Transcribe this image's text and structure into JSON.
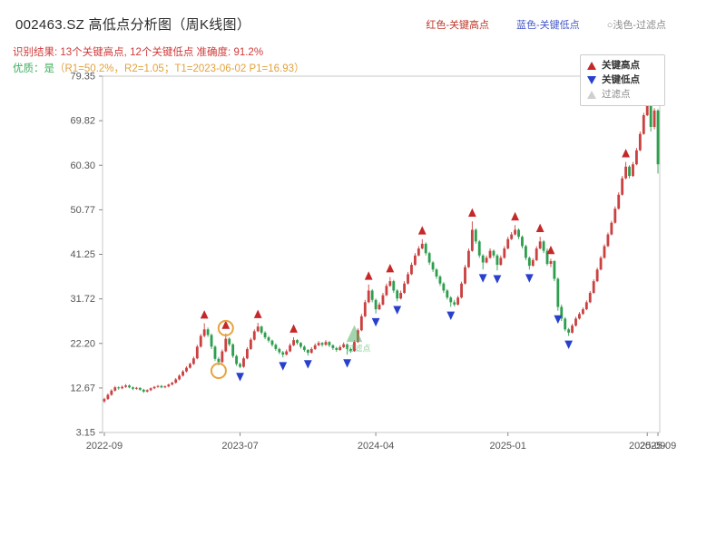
{
  "header": {
    "title": "002463.SZ 高低点分析图（周K线图）",
    "legend_top": [
      {
        "label": "红色-关键高点",
        "color": "#c0392b"
      },
      {
        "label": "蓝色-关键低点",
        "color": "#4558c9"
      },
      {
        "label": "○浅色-过滤点",
        "color": "#8c8c8c"
      }
    ],
    "result_line": "识别结果: 13个关键高点, 12个关键低点  准确度: 91.2%",
    "quality_prefix": "优质：是",
    "quality_detail": "（R1=50.2%，R2=1.05；T1=2023-06-02 P1=16.93）"
  },
  "legend_box": {
    "items": [
      {
        "label": "关键高点",
        "marker": "up-triangle-red"
      },
      {
        "label": "关键低点",
        "marker": "down-triangle-blue"
      },
      {
        "label": "过滤点",
        "marker": "up-triangle-light"
      }
    ]
  },
  "chart_data": {
    "type": "candlestick",
    "title": "002463.SZ 高低点分析图（周K线图）",
    "xlabel": "",
    "ylabel": "",
    "ylim": [
      3.15,
      79.35
    ],
    "y_ticks": [
      79.35,
      69.82,
      60.3,
      50.77,
      41.25,
      31.72,
      22.2,
      12.67,
      3.15
    ],
    "x_ticks": [
      {
        "i": 0,
        "label": "2022-09"
      },
      {
        "i": 38,
        "label": "2023-07"
      },
      {
        "i": 76,
        "label": "2024-04"
      },
      {
        "i": 113,
        "label": "2025-01"
      },
      {
        "i": 152,
        "label": "2025-09"
      },
      {
        "i": 155,
        "label": "2025-09"
      }
    ],
    "colors": {
      "up": "#cb4141",
      "down": "#2e9e4e",
      "key_high": "#c62828",
      "key_low": "#2840cc",
      "filter_circle": "#e8a33d",
      "filter_triangle": "#58b368",
      "axis": "#c8c8c8",
      "tick": "#888888"
    },
    "candles": [
      [
        9.8,
        10.6,
        9.5,
        10.3
      ],
      [
        10.3,
        11.5,
        10.1,
        11.2
      ],
      [
        11.2,
        12.4,
        11.0,
        12.1
      ],
      [
        12.1,
        13.1,
        11.9,
        12.8
      ],
      [
        12.8,
        13.0,
        12.3,
        12.6
      ],
      [
        12.6,
        13.2,
        12.4,
        12.9
      ],
      [
        12.9,
        13.5,
        12.7,
        13.2
      ],
      [
        13.2,
        13.4,
        12.6,
        12.8
      ],
      [
        12.8,
        13.0,
        12.2,
        12.5
      ],
      [
        12.5,
        12.9,
        12.3,
        12.7
      ],
      [
        12.7,
        12.8,
        12.1,
        12.3
      ],
      [
        12.3,
        12.5,
        11.6,
        11.9
      ],
      [
        11.9,
        12.4,
        11.7,
        12.2
      ],
      [
        12.2,
        12.8,
        12.0,
        12.6
      ],
      [
        12.6,
        13.1,
        12.4,
        12.9
      ],
      [
        12.9,
        13.3,
        12.7,
        13.1
      ],
      [
        13.1,
        13.3,
        12.6,
        12.8
      ],
      [
        12.8,
        13.2,
        12.6,
        13.0
      ],
      [
        13.0,
        13.6,
        12.8,
        13.4
      ],
      [
        13.4,
        14.0,
        13.2,
        13.8
      ],
      [
        13.8,
        14.8,
        13.6,
        14.5
      ],
      [
        14.5,
        15.6,
        14.3,
        15.3
      ],
      [
        15.3,
        16.5,
        15.1,
        16.2
      ],
      [
        16.2,
        17.3,
        16.0,
        17.0
      ],
      [
        17.0,
        18.1,
        16.8,
        17.8
      ],
      [
        17.8,
        19.4,
        17.6,
        19.0
      ],
      [
        19.0,
        21.9,
        18.8,
        21.5
      ],
      [
        21.5,
        24.2,
        21.3,
        23.8
      ],
      [
        23.8,
        26.5,
        23.5,
        25.2
      ],
      [
        25.2,
        25.6,
        23.6,
        24.0
      ],
      [
        24.0,
        24.3,
        21.0,
        21.5
      ],
      [
        21.5,
        21.8,
        18.5,
        18.9
      ],
      [
        18.9,
        19.3,
        17.5,
        18.2
      ],
      [
        18.2,
        20.9,
        18.0,
        20.5
      ],
      [
        20.5,
        24.3,
        20.3,
        23.2
      ],
      [
        23.2,
        23.5,
        21.6,
        22.0
      ],
      [
        22.0,
        22.2,
        19.1,
        19.5
      ],
      [
        19.5,
        19.8,
        17.4,
        17.8
      ],
      [
        17.8,
        18.1,
        16.9,
        17.2
      ],
      [
        17.2,
        19.4,
        17.0,
        19.0
      ],
      [
        19.0,
        21.4,
        18.8,
        21.0
      ],
      [
        21.0,
        23.4,
        20.8,
        23.0
      ],
      [
        23.0,
        25.2,
        22.8,
        24.8
      ],
      [
        24.8,
        26.6,
        24.6,
        25.8
      ],
      [
        25.8,
        26.0,
        24.1,
        24.5
      ],
      [
        24.5,
        24.8,
        23.1,
        23.5
      ],
      [
        23.5,
        23.8,
        22.4,
        22.8
      ],
      [
        22.8,
        23.0,
        21.5,
        21.9
      ],
      [
        21.9,
        22.2,
        20.6,
        21.0
      ],
      [
        21.0,
        21.3,
        19.9,
        20.3
      ],
      [
        20.3,
        20.6,
        19.2,
        19.8
      ],
      [
        19.8,
        20.9,
        19.6,
        20.5
      ],
      [
        20.5,
        22.2,
        20.3,
        21.8
      ],
      [
        21.8,
        23.5,
        21.6,
        22.9
      ],
      [
        22.9,
        23.1,
        21.9,
        22.3
      ],
      [
        22.3,
        22.5,
        21.1,
        21.5
      ],
      [
        21.5,
        21.8,
        20.4,
        20.8
      ],
      [
        20.8,
        21.0,
        19.6,
        20.2
      ],
      [
        20.2,
        21.4,
        20.0,
        21.0
      ],
      [
        21.0,
        22.2,
        20.8,
        21.8
      ],
      [
        21.8,
        22.7,
        21.6,
        22.3
      ],
      [
        22.3,
        22.5,
        21.5,
        21.9
      ],
      [
        21.9,
        22.9,
        21.7,
        22.5
      ],
      [
        22.5,
        22.7,
        21.4,
        21.8
      ],
      [
        21.8,
        22.0,
        20.8,
        21.2
      ],
      [
        21.2,
        21.5,
        20.4,
        20.8
      ],
      [
        20.8,
        21.8,
        20.6,
        21.4
      ],
      [
        21.4,
        22.4,
        21.2,
        22.0
      ],
      [
        22.0,
        22.2,
        19.8,
        21.0
      ],
      [
        21.0,
        21.3,
        20.2,
        20.6
      ],
      [
        20.6,
        22.9,
        20.4,
        22.5
      ],
      [
        22.5,
        25.4,
        22.3,
        25.0
      ],
      [
        25.0,
        28.5,
        24.8,
        28.0
      ],
      [
        28.0,
        31.5,
        27.8,
        31.0
      ],
      [
        31.0,
        34.8,
        30.8,
        33.5
      ],
      [
        33.5,
        33.8,
        31.0,
        31.5
      ],
      [
        31.5,
        31.8,
        28.6,
        29.5
      ],
      [
        29.5,
        31.0,
        29.3,
        30.5
      ],
      [
        30.5,
        33.0,
        30.3,
        32.5
      ],
      [
        32.5,
        35.0,
        32.3,
        34.5
      ],
      [
        34.5,
        36.4,
        34.3,
        35.5
      ],
      [
        35.5,
        35.8,
        33.0,
        33.5
      ],
      [
        33.5,
        33.8,
        31.2,
        31.8
      ],
      [
        31.8,
        33.5,
        31.6,
        33.0
      ],
      [
        33.0,
        35.5,
        32.8,
        35.0
      ],
      [
        35.0,
        37.5,
        34.8,
        37.0
      ],
      [
        37.0,
        39.5,
        36.8,
        39.0
      ],
      [
        39.0,
        41.5,
        38.8,
        41.0
      ],
      [
        41.0,
        43.0,
        40.8,
        42.5
      ],
      [
        42.5,
        44.5,
        42.3,
        43.5
      ],
      [
        43.5,
        43.8,
        41.0,
        41.5
      ],
      [
        41.5,
        41.8,
        39.0,
        39.5
      ],
      [
        39.5,
        39.8,
        37.5,
        38.0
      ],
      [
        38.0,
        38.3,
        36.0,
        36.5
      ],
      [
        36.5,
        36.8,
        34.5,
        35.0
      ],
      [
        35.0,
        35.3,
        33.0,
        33.5
      ],
      [
        33.5,
        33.8,
        31.6,
        32.0
      ],
      [
        32.0,
        32.3,
        30.0,
        31.0
      ],
      [
        31.0,
        31.5,
        30.1,
        30.5
      ],
      [
        30.5,
        32.4,
        30.3,
        32.0
      ],
      [
        32.0,
        35.4,
        31.8,
        35.0
      ],
      [
        35.0,
        39.0,
        34.8,
        38.5
      ],
      [
        38.5,
        42.5,
        38.3,
        42.0
      ],
      [
        42.0,
        48.3,
        41.8,
        46.5
      ],
      [
        46.5,
        46.8,
        43.5,
        44.0
      ],
      [
        44.0,
        44.3,
        40.5,
        41.0
      ],
      [
        41.0,
        41.3,
        38.0,
        39.5
      ],
      [
        39.5,
        41.0,
        39.3,
        40.5
      ],
      [
        40.5,
        42.5,
        40.3,
        42.0
      ],
      [
        42.0,
        42.3,
        40.5,
        41.0
      ],
      [
        41.0,
        41.3,
        37.8,
        39.0
      ],
      [
        39.0,
        41.0,
        38.8,
        40.5
      ],
      [
        40.5,
        43.0,
        40.3,
        42.5
      ],
      [
        42.5,
        45.0,
        42.3,
        44.5
      ],
      [
        44.5,
        46.0,
        44.3,
        45.5
      ],
      [
        45.5,
        47.5,
        45.3,
        46.5
      ],
      [
        46.5,
        46.8,
        44.5,
        45.0
      ],
      [
        45.0,
        45.3,
        42.5,
        43.0
      ],
      [
        43.0,
        43.3,
        40.0,
        40.5
      ],
      [
        40.5,
        40.8,
        38.0,
        38.8
      ],
      [
        38.8,
        40.4,
        38.6,
        40.0
      ],
      [
        40.0,
        43.0,
        39.8,
        42.5
      ],
      [
        42.5,
        45.0,
        42.3,
        44.0
      ],
      [
        44.0,
        44.3,
        41.5,
        42.0
      ],
      [
        42.0,
        42.5,
        38.8,
        39.2
      ],
      [
        39.2,
        40.3,
        38.5,
        39.8
      ],
      [
        39.8,
        40.0,
        35.5,
        36.0
      ],
      [
        36.0,
        36.3,
        29.2,
        30.0
      ],
      [
        30.0,
        30.5,
        27.0,
        27.5
      ],
      [
        27.5,
        27.8,
        24.8,
        25.2
      ],
      [
        25.2,
        25.5,
        23.8,
        24.5
      ],
      [
        24.5,
        26.4,
        24.3,
        26.0
      ],
      [
        26.0,
        27.9,
        25.8,
        27.5
      ],
      [
        27.5,
        28.9,
        27.3,
        28.5
      ],
      [
        28.5,
        29.9,
        28.3,
        29.5
      ],
      [
        29.5,
        31.4,
        29.3,
        31.0
      ],
      [
        31.0,
        33.4,
        30.8,
        33.0
      ],
      [
        33.0,
        35.9,
        32.8,
        35.5
      ],
      [
        35.5,
        38.4,
        35.3,
        38.0
      ],
      [
        38.0,
        40.9,
        37.8,
        40.5
      ],
      [
        40.5,
        43.4,
        40.3,
        43.0
      ],
      [
        43.0,
        45.9,
        42.8,
        45.5
      ],
      [
        45.5,
        48.4,
        45.3,
        48.0
      ],
      [
        48.0,
        51.5,
        47.8,
        51.0
      ],
      [
        51.0,
        54.5,
        50.8,
        54.0
      ],
      [
        54.0,
        58.0,
        53.8,
        57.5
      ],
      [
        57.5,
        61.0,
        57.3,
        60.0
      ],
      [
        60.0,
        60.3,
        57.5,
        58.0
      ],
      [
        58.0,
        61.0,
        57.8,
        60.5
      ],
      [
        60.5,
        64.0,
        60.3,
        63.5
      ],
      [
        63.5,
        67.5,
        63.3,
        67.0
      ],
      [
        67.0,
        71.5,
        66.8,
        71.0
      ],
      [
        71.0,
        75.4,
        70.8,
        74.0
      ],
      [
        74.0,
        74.3,
        67.5,
        68.5
      ],
      [
        68.5,
        72.5,
        68.0,
        72.0
      ],
      [
        72.0,
        72.3,
        58.5,
        60.5
      ]
    ],
    "key_highs": [
      {
        "i": 28,
        "v": 26.5
      },
      {
        "i": 34,
        "v": 24.3
      },
      {
        "i": 43,
        "v": 26.6
      },
      {
        "i": 53,
        "v": 23.5
      },
      {
        "i": 74,
        "v": 34.8
      },
      {
        "i": 80,
        "v": 36.4
      },
      {
        "i": 89,
        "v": 44.5
      },
      {
        "i": 103,
        "v": 48.3
      },
      {
        "i": 115,
        "v": 47.5
      },
      {
        "i": 122,
        "v": 45.0
      },
      {
        "i": 125,
        "v": 40.3
      },
      {
        "i": 146,
        "v": 61.0
      },
      {
        "i": 152,
        "v": 75.4
      }
    ],
    "key_lows": [
      {
        "i": 38,
        "v": 16.9
      },
      {
        "i": 50,
        "v": 19.2
      },
      {
        "i": 57,
        "v": 19.6
      },
      {
        "i": 68,
        "v": 19.8
      },
      {
        "i": 76,
        "v": 28.6
      },
      {
        "i": 82,
        "v": 31.2
      },
      {
        "i": 97,
        "v": 30.0
      },
      {
        "i": 106,
        "v": 38.0
      },
      {
        "i": 110,
        "v": 37.8
      },
      {
        "i": 119,
        "v": 38.0
      },
      {
        "i": 127,
        "v": 29.2
      },
      {
        "i": 130,
        "v": 23.8
      }
    ],
    "filtered_circles": [
      {
        "i": 32,
        "v": 17.5,
        "pos": "low"
      },
      {
        "i": 34,
        "v": 24.3,
        "pos": "high"
      }
    ],
    "filtered_triangle": {
      "i": 70,
      "v": 24.0
    },
    "filtered_label": "过滤点"
  }
}
